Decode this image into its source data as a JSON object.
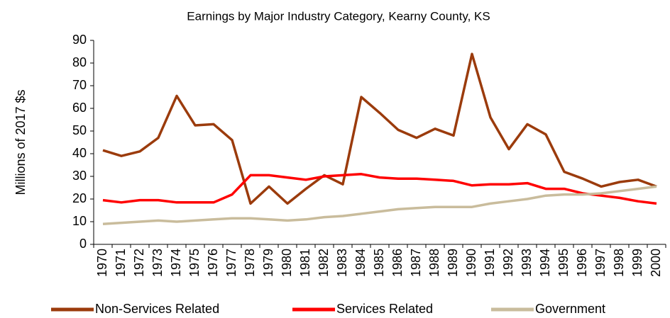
{
  "chart_data": {
    "type": "line",
    "title": "Earnings by Major Industry Category, Kearny County, KS",
    "y_label": "Millions of 2017 $s",
    "categories": [
      "1970",
      "1971",
      "1972",
      "1973",
      "1974",
      "1975",
      "1976",
      "1977",
      "1978",
      "1979",
      "1980",
      "1981",
      "1982",
      "1983",
      "1984",
      "1985",
      "1986",
      "1987",
      "1988",
      "1989",
      "1990",
      "1991",
      "1992",
      "1993",
      "1994",
      "1995",
      "1996",
      "1997",
      "1998",
      "1999",
      "2000"
    ],
    "series": [
      {
        "name": "Non-Services Related",
        "color": "#9b3b0c",
        "values": [
          41.5,
          39,
          41,
          47,
          65.5,
          52.5,
          53,
          46,
          18,
          25.5,
          18,
          24.5,
          30.5,
          26.5,
          65,
          58,
          50.5,
          47,
          51,
          48,
          84,
          56,
          42,
          53,
          48.5,
          32,
          29,
          25.5,
          27.5,
          28.5,
          25.5
        ]
      },
      {
        "name": "Services Related",
        "color": "#ff0000",
        "values": [
          19.5,
          18.5,
          19.5,
          19.5,
          18.5,
          18.5,
          18.5,
          22,
          30.5,
          30.5,
          29.5,
          28.5,
          30,
          30.5,
          31,
          29.5,
          29,
          29,
          28.5,
          28,
          26,
          26.5,
          26.5,
          27,
          24.5,
          24.5,
          22.5,
          21.5,
          20.5,
          19,
          18
        ]
      },
      {
        "name": "Government",
        "color": "#c9bc9c",
        "values": [
          9,
          9.5,
          10,
          10.5,
          10,
          10.5,
          11,
          11.5,
          11.5,
          11,
          10.5,
          11,
          12,
          12.5,
          13.5,
          14.5,
          15.5,
          16,
          16.5,
          16.5,
          16.5,
          18,
          19,
          20,
          21.5,
          22,
          22,
          22.5,
          23.5,
          24.5,
          25.5
        ]
      }
    ],
    "ylim": [
      0,
      90
    ],
    "yticks": [
      0,
      10,
      20,
      30,
      40,
      50,
      60,
      70,
      80,
      90
    ],
    "grid": false,
    "legend": "bottom"
  }
}
